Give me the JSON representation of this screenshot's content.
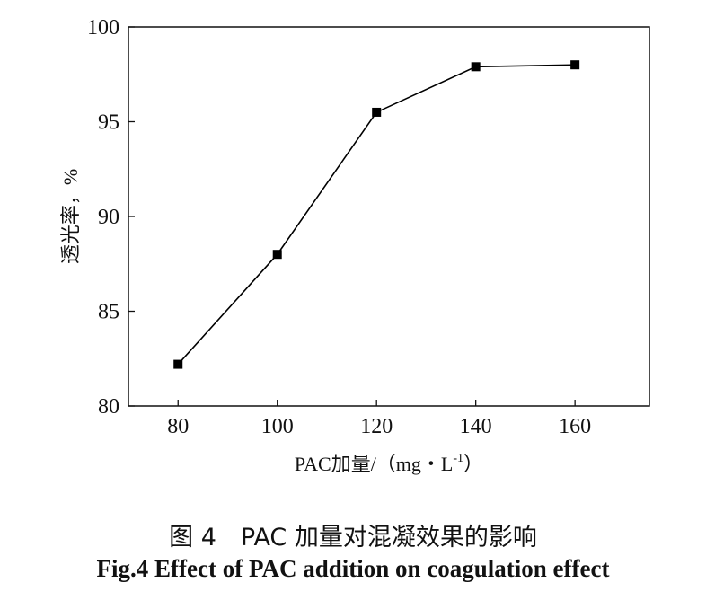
{
  "chart_data": {
    "type": "line",
    "x": [
      80,
      100,
      120,
      140,
      160
    ],
    "series": [
      {
        "values": [
          82.2,
          88.0,
          95.5,
          97.9,
          98.0
        ]
      }
    ],
    "xlabel": "PAC加量/（mg・L",
    "xlabel_superscript": "-1",
    "xlabel_suffix": "）",
    "ylabel": "透光率，%",
    "xticks": [
      "80",
      "100",
      "120",
      "140",
      "160"
    ],
    "yticks": [
      "80",
      "85",
      "90",
      "95",
      "100"
    ],
    "xlim": [
      70,
      175
    ],
    "ylim": [
      80,
      100
    ],
    "grid": false,
    "marker": "square",
    "line_color": "#000000"
  },
  "caption": {
    "cn": "图 4　PAC 加量对混凝效果的影响",
    "en": "Fig.4 Effect of PAC addition on coagulation effect"
  }
}
